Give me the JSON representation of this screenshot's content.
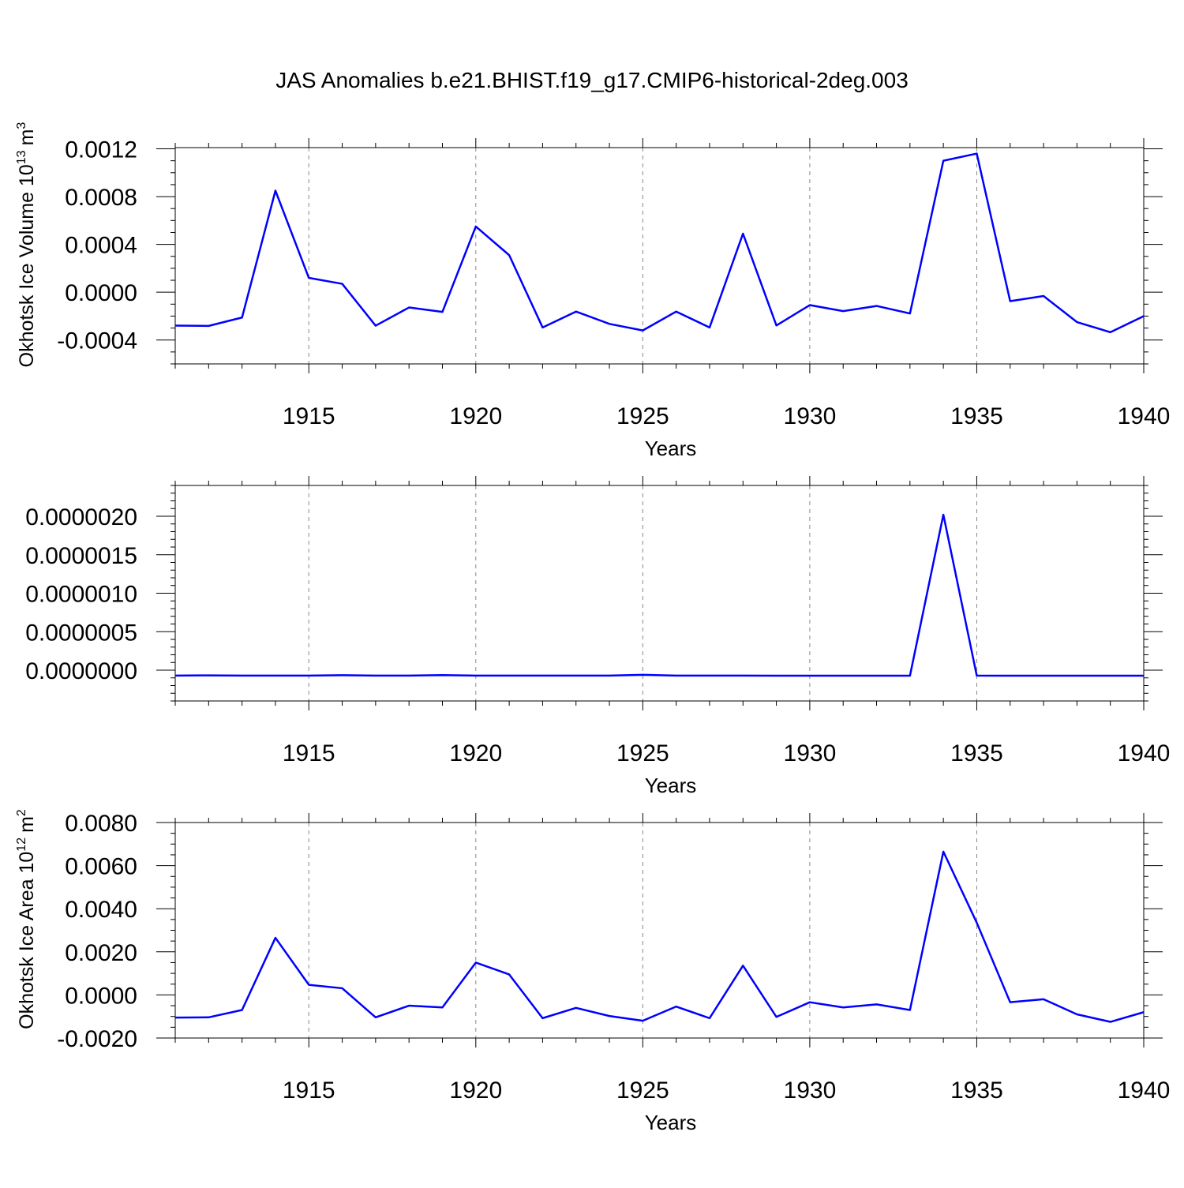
{
  "figure": {
    "title": "JAS Anomalies b.e21.BHIST.f19_g17.CMIP6-historical-2deg.003"
  },
  "chart_data": [
    {
      "type": "line",
      "title": "",
      "xlabel": "Years",
      "ylabel": "Okhotsk Ice Volume 10",
      "ylabel_sup": "13",
      "ylabel_unit": "m",
      "ylabel_unit_sup": "3",
      "xlim": [
        1911,
        1940
      ],
      "ylim": [
        -0.0006,
        0.00121
      ],
      "x_ticks": [
        1915,
        1920,
        1925,
        1930,
        1935,
        1940
      ],
      "x_tick_labels": [
        "1915",
        "1920",
        "1925",
        "1930",
        "1935",
        "1940"
      ],
      "y_ticks": [
        -0.0004,
        0.0,
        0.0004,
        0.0008,
        0.0012
      ],
      "y_tick_labels": [
        "-0.0004",
        "0.0000",
        "0.0004",
        "0.0008",
        "0.0012"
      ],
      "grid": "vertical dashed at major x ticks",
      "color": "#0000ff",
      "series": [
        {
          "x": [
            1911,
            1912,
            1913,
            1914,
            1915,
            1916,
            1917,
            1918,
            1919,
            1920,
            1921,
            1922,
            1923,
            1924,
            1925,
            1926,
            1927,
            1928,
            1929,
            1930,
            1931,
            1932,
            1933,
            1934,
            1935,
            1936,
            1937,
            1938,
            1939,
            1940
          ],
          "values": [
            -0.00028,
            -0.000282,
            -0.000212,
            0.00085,
            0.00012,
            7e-05,
            -0.00028,
            -0.000128,
            -0.000165,
            0.00055,
            0.00031,
            -0.000295,
            -0.000162,
            -0.000265,
            -0.00032,
            -0.000162,
            -0.000295,
            0.00049,
            -0.000278,
            -0.000108,
            -0.000158,
            -0.000115,
            -0.000178,
            0.0011,
            0.00116,
            -7.5e-05,
            -3.2e-05,
            -0.00025,
            -0.000335,
            -0.0002
          ]
        }
      ]
    },
    {
      "type": "line",
      "title": "",
      "xlabel": "Years",
      "ylabel": "",
      "xlim": [
        1911,
        1940
      ],
      "ylim": [
        -4e-07,
        2.4e-06
      ],
      "x_ticks": [
        1915,
        1920,
        1925,
        1930,
        1935,
        1940
      ],
      "x_tick_labels": [
        "1915",
        "1920",
        "1925",
        "1930",
        "1935",
        "1940"
      ],
      "y_ticks": [
        0.0,
        5e-07,
        1e-06,
        1.5e-06,
        2e-06
      ],
      "y_tick_labels": [
        "0.0000000",
        "0.0000005",
        "0.0000010",
        "0.0000015",
        "0.0000020"
      ],
      "grid": "vertical dashed at major x ticks",
      "color": "#0000ff",
      "series": [
        {
          "x": [
            1911,
            1912,
            1913,
            1914,
            1915,
            1916,
            1917,
            1918,
            1919,
            1920,
            1921,
            1922,
            1923,
            1924,
            1925,
            1926,
            1927,
            1928,
            1929,
            1930,
            1931,
            1932,
            1933,
            1934,
            1935,
            1936,
            1937,
            1938,
            1939,
            1940
          ],
          "values": [
            -7e-08,
            -6.8e-08,
            -7e-08,
            -7e-08,
            -7e-08,
            -6.6e-08,
            -7e-08,
            -7e-08,
            -6.4e-08,
            -7e-08,
            -7e-08,
            -7e-08,
            -7e-08,
            -7e-08,
            -6e-08,
            -7e-08,
            -7e-08,
            -7e-08,
            -7.2e-08,
            -7.2e-08,
            -7.2e-08,
            -7.2e-08,
            -7.2e-08,
            2.02e-06,
            -7e-08,
            -7.2e-08,
            -7.2e-08,
            -7.2e-08,
            -7.2e-08,
            -7.2e-08
          ]
        }
      ]
    },
    {
      "type": "line",
      "title": "",
      "xlabel": "Years",
      "ylabel": "Okhotsk Ice Area 10",
      "ylabel_sup": "12",
      "ylabel_unit": "m",
      "ylabel_unit_sup": "2",
      "xlim": [
        1911,
        1940
      ],
      "ylim": [
        -0.002,
        0.008
      ],
      "x_ticks": [
        1915,
        1920,
        1925,
        1930,
        1935,
        1940
      ],
      "x_tick_labels": [
        "1915",
        "1920",
        "1925",
        "1930",
        "1935",
        "1940"
      ],
      "y_ticks": [
        -0.002,
        0.0,
        0.002,
        0.004,
        0.006,
        0.008
      ],
      "y_tick_labels": [
        "-0.0020",
        "0.0000",
        "0.0020",
        "0.0040",
        "0.0060",
        "0.0080"
      ],
      "grid": "vertical dashed at major x ticks",
      "color": "#0000ff",
      "series": [
        {
          "x": [
            1911,
            1912,
            1913,
            1914,
            1915,
            1916,
            1917,
            1918,
            1919,
            1920,
            1921,
            1922,
            1923,
            1924,
            1925,
            1926,
            1927,
            1928,
            1929,
            1930,
            1931,
            1932,
            1933,
            1934,
            1935,
            1936,
            1937,
            1938,
            1939,
            1940
          ],
          "values": [
            -0.00105,
            -0.00104,
            -0.0007,
            0.00265,
            0.00047,
            0.00031,
            -0.00104,
            -0.0005,
            -0.00058,
            0.0015,
            0.00095,
            -0.00108,
            -0.0006,
            -0.00098,
            -0.0012,
            -0.00054,
            -0.00108,
            0.00136,
            -0.00102,
            -0.00034,
            -0.00058,
            -0.00044,
            -0.0007,
            0.00665,
            0.00335,
            -0.00034,
            -0.0002,
            -0.0009,
            -0.00125,
            -0.0008
          ]
        }
      ]
    }
  ]
}
